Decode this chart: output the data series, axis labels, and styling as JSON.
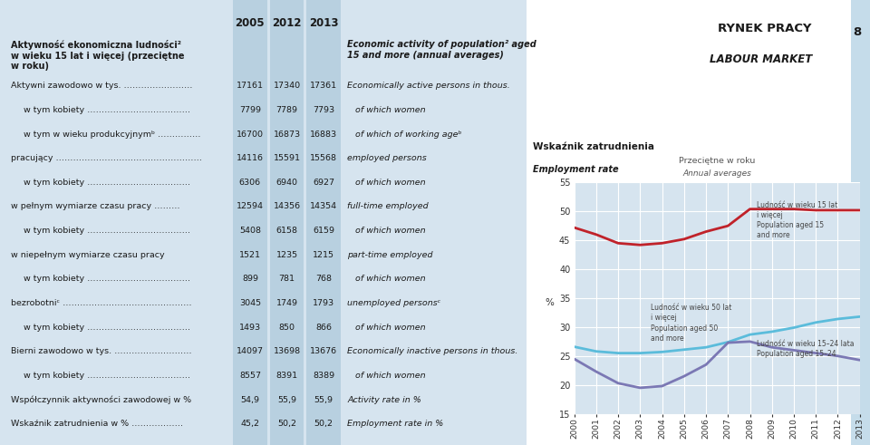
{
  "background_left": "#d6e4ef",
  "background_right": "#ffffff",
  "stripe_right": "#c5dcea",
  "col_header_bg": "#b8d0e0",
  "page_number": "8",
  "table_rows": [
    {
      "pl": "Aktywność ekonomiczna ludności²\nw wieku 15 lat i więcej (przeciętne\nw roku)",
      "v2005": "",
      "v2012": "",
      "v2013": "",
      "en": "Economic activity of population² aged\n15 and more (annual averages)",
      "bold": true,
      "indent": false
    },
    {
      "pl": "Aktywni zawodowo w tys. ……………………",
      "v2005": "17161",
      "v2012": "17340",
      "v2013": "17361",
      "en": "Economically active persons in thous.",
      "bold": false,
      "indent": false
    },
    {
      "pl": "w tym kobiety ………………………………",
      "v2005": "7799",
      "v2012": "7789",
      "v2013": "7793",
      "en": "of which women",
      "bold": false,
      "indent": true
    },
    {
      "pl": "w tym w wieku produkcyjnymᵇ ……………",
      "v2005": "16700",
      "v2012": "16873",
      "v2013": "16883",
      "en": "of which of working ageᵇ",
      "bold": false,
      "indent": true
    },
    {
      "pl": "pracujący ……………………………………………",
      "v2005": "14116",
      "v2012": "15591",
      "v2013": "15568",
      "en": "employed persons",
      "bold": false,
      "indent": false
    },
    {
      "pl": "w tym kobiety ………………………………",
      "v2005": "6306",
      "v2012": "6940",
      "v2013": "6927",
      "en": "of which women",
      "bold": false,
      "indent": true
    },
    {
      "pl": "w pełnym wymiarze czasu pracy ………",
      "v2005": "12594",
      "v2012": "14356",
      "v2013": "14354",
      "en": "full-time employed",
      "bold": false,
      "indent": false
    },
    {
      "pl": "w tym kobiety ………………………………",
      "v2005": "5408",
      "v2012": "6158",
      "v2013": "6159",
      "en": "of which women",
      "bold": false,
      "indent": true
    },
    {
      "pl": "w niepełnym wymiarze czasu pracy",
      "v2005": "1521",
      "v2012": "1235",
      "v2013": "1215",
      "en": "part-time employed",
      "bold": false,
      "indent": false
    },
    {
      "pl": "w tym kobiety ………………………………",
      "v2005": "899",
      "v2012": "781",
      "v2013": "768",
      "en": "of which women",
      "bold": false,
      "indent": true
    },
    {
      "pl": "bezrobotniᶜ ………………………………………",
      "v2005": "3045",
      "v2012": "1749",
      "v2013": "1793",
      "en": "unemployed personsᶜ",
      "bold": false,
      "indent": false
    },
    {
      "pl": "w tym kobiety ………………………………",
      "v2005": "1493",
      "v2012": "850",
      "v2013": "866",
      "en": "of which women",
      "bold": false,
      "indent": true
    },
    {
      "pl": "Bierni zawodowo w tys. ………………………",
      "v2005": "14097",
      "v2012": "13698",
      "v2013": "13676",
      "en": "Economically inactive persons in thous.",
      "bold": false,
      "indent": false
    },
    {
      "pl": "w tym kobiety ………………………………",
      "v2005": "8557",
      "v2012": "8391",
      "v2013": "8389",
      "en": "of which women",
      "bold": false,
      "indent": true
    },
    {
      "pl": "Współczynnik aktywności zawodowej w %",
      "v2005": "54,9",
      "v2012": "55,9",
      "v2013": "55,9",
      "en": "Activity rate in %",
      "bold": false,
      "indent": false
    },
    {
      "pl": "Wskaźnik zatrudnienia w % ………………",
      "v2005": "45,2",
      "v2012": "50,2",
      "v2013": "50,2",
      "en": "Employment rate in %",
      "bold": false,
      "indent": false
    }
  ],
  "chart_title_pl": "Wskaźnik zatrudnienia",
  "chart_title_en": "Employment rate",
  "chart_subtitle_pl": "Przeciętne w roku",
  "chart_subtitle_en": "Annual averages",
  "chart_ylabel": "%",
  "chart_ylim": [
    15,
    55
  ],
  "chart_yticks": [
    15,
    20,
    25,
    30,
    35,
    40,
    45,
    50,
    55
  ],
  "chart_years": [
    2000,
    2001,
    2002,
    2003,
    2004,
    2005,
    2006,
    2007,
    2008,
    2009,
    2010,
    2011,
    2012,
    2013
  ],
  "series_15plus": {
    "values": [
      47.2,
      46.0,
      44.5,
      44.2,
      44.5,
      45.2,
      46.5,
      47.5,
      50.4,
      50.4,
      50.4,
      50.2,
      50.2,
      50.2
    ],
    "color": "#c0222a"
  },
  "series_50plus": {
    "values": [
      26.6,
      25.8,
      25.5,
      25.5,
      25.7,
      26.1,
      26.5,
      27.4,
      28.7,
      29.2,
      29.9,
      30.8,
      31.4,
      31.8
    ],
    "color": "#5bbcdb"
  },
  "series_15_24": {
    "values": [
      24.5,
      22.3,
      20.3,
      19.5,
      19.8,
      21.5,
      23.5,
      27.3,
      27.5,
      26.5,
      26.0,
      25.5,
      25.0,
      24.3
    ],
    "color": "#7b78b4"
  }
}
